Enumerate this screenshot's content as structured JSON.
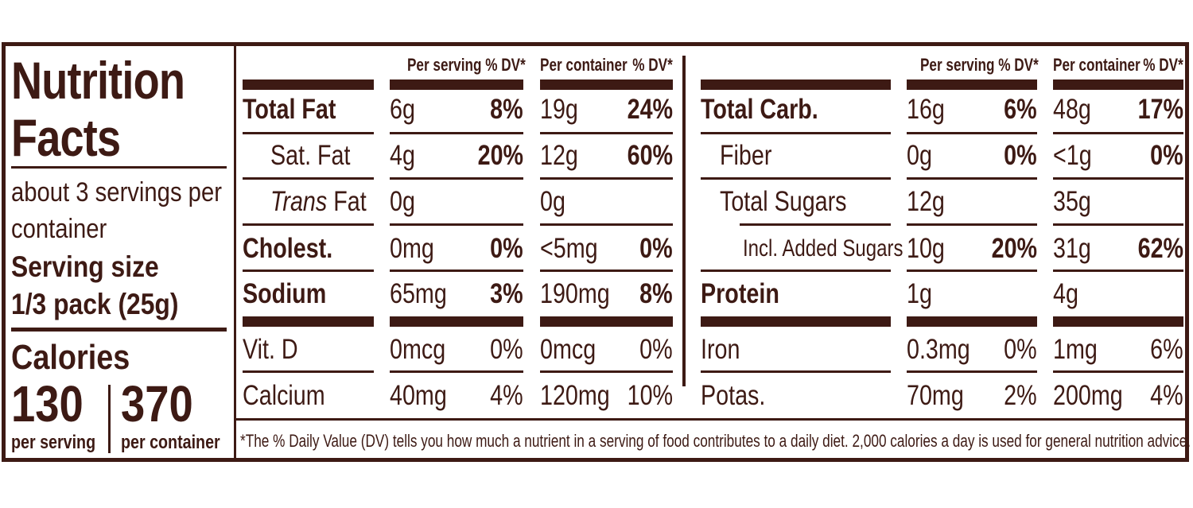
{
  "left": {
    "title_line1": "Nutrition",
    "title_line2": "Facts",
    "servings_line1": "about 3 servings per",
    "servings_line2": "container",
    "serving_size_label": "Serving size",
    "serving_size_value": "1/3 pack (25g)",
    "calories_label": "Calories",
    "calories_per_serving": "130",
    "calories_per_container": "370",
    "per_serving_label": "per serving",
    "per_container_label": "per container"
  },
  "headers": {
    "per_serving_dv": "Per serving % DV*",
    "per_container": "Per container",
    "dv": "% DV*"
  },
  "left_table": [
    {
      "name": "Total Fat",
      "serv": "6g",
      "serv_dv": "8%",
      "cont": "19g",
      "cont_dv": "24%"
    },
    {
      "name": "Sat. Fat",
      "serv": "4g",
      "serv_dv": "20%",
      "cont": "12g",
      "cont_dv": "60%"
    },
    {
      "name_italic": "Trans",
      "name_rest": " Fat",
      "serv": "0g",
      "serv_dv": "",
      "cont": "0g",
      "cont_dv": ""
    },
    {
      "name": "Cholest.",
      "serv": "0mg",
      "serv_dv": "0%",
      "cont": "<5mg",
      "cont_dv": "0%"
    },
    {
      "name": "Sodium",
      "serv": "65mg",
      "serv_dv": "3%",
      "cont": "190mg",
      "cont_dv": "8%"
    },
    {
      "name": "Vit. D",
      "serv": "0mcg",
      "serv_dv": "0%",
      "cont": "0mcg",
      "cont_dv": "0%"
    },
    {
      "name": "Calcium",
      "serv": "40mg",
      "serv_dv": "4%",
      "cont": "120mg",
      "cont_dv": "10%"
    }
  ],
  "right_table": [
    {
      "name": "Total Carb.",
      "serv": "16g",
      "serv_dv": "6%",
      "cont": "48g",
      "cont_dv": "17%"
    },
    {
      "name": "Fiber",
      "serv": "0g",
      "serv_dv": "0%",
      "cont": "<1g",
      "cont_dv": "0%"
    },
    {
      "name": "Total Sugars",
      "serv": "12g",
      "serv_dv": "",
      "cont": "35g",
      "cont_dv": ""
    },
    {
      "name": "Incl. Added Sugars",
      "serv": "10g",
      "serv_dv": "20%",
      "cont": "31g",
      "cont_dv": "62%"
    },
    {
      "name": "Protein",
      "serv": "1g",
      "serv_dv": "",
      "cont": "4g",
      "cont_dv": ""
    },
    {
      "name": "Iron",
      "serv": "0.3mg",
      "serv_dv": "0%",
      "cont": "1mg",
      "cont_dv": "6%"
    },
    {
      "name": "Potas.",
      "serv": "70mg",
      "serv_dv": "2%",
      "cont": "200mg",
      "cont_dv": "4%"
    }
  ],
  "footnote": "*The % Daily Value (DV) tells you how much a nutrient in a serving of food contributes to a daily diet. 2,000 calories a day is used for general nutrition advice.",
  "colors": {
    "ink": "#3d1a14",
    "background": "#ffffff"
  }
}
